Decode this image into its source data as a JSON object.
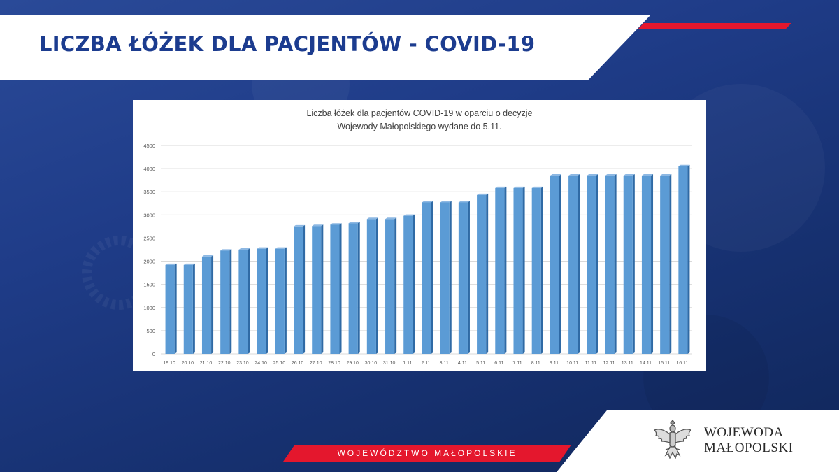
{
  "header": {
    "title": "LICZBA ŁÓŻEK DLA PACJENTÓW - COVID-19"
  },
  "chart_data": {
    "type": "bar",
    "title_lines": [
      "Liczba łóżek dla pacjentów COVID-19  w oparciu o decyzje",
      "Wojewody Małopolskiego wydane do 5.11."
    ],
    "xlabel": "",
    "ylabel": "",
    "ylim": [
      0,
      4500
    ],
    "yticks": [
      0,
      500,
      1000,
      1500,
      2000,
      2500,
      3000,
      3500,
      4000,
      4500
    ],
    "grid": true,
    "legend": "none",
    "bar_color": "#5b9bd5",
    "categories": [
      "19.10.",
      "20.10.",
      "21.10.",
      "22.10.",
      "23.10.",
      "24.10.",
      "25.10.",
      "26.10.",
      "27.10.",
      "28.10.",
      "29.10.",
      "30.10.",
      "31.10.",
      "1.11.",
      "2.11.",
      "3.11.",
      "4.11.",
      "5.11.",
      "6.11.",
      "7.11.",
      "8.11.",
      "9.11.",
      "10.11.",
      "11.11.",
      "12.11.",
      "13.11.",
      "14.11.",
      "15.11.",
      "16.11."
    ],
    "values": [
      1920,
      1920,
      2100,
      2230,
      2250,
      2270,
      2270,
      2750,
      2760,
      2790,
      2820,
      2910,
      2910,
      2980,
      3270,
      3270,
      3270,
      3430,
      3580,
      3580,
      3580,
      3850,
      3850,
      3850,
      3850,
      3850,
      3850,
      3850,
      4050
    ]
  },
  "footer": {
    "region_label": "WOJEWÓDZTWO MAŁOPOLSKIE"
  },
  "logo": {
    "line1": "WOJEWODA",
    "line2": "MAŁOPOLSKI"
  },
  "colors": {
    "brand_blue": "#1c3c8f",
    "accent_red": "#e4172d"
  }
}
